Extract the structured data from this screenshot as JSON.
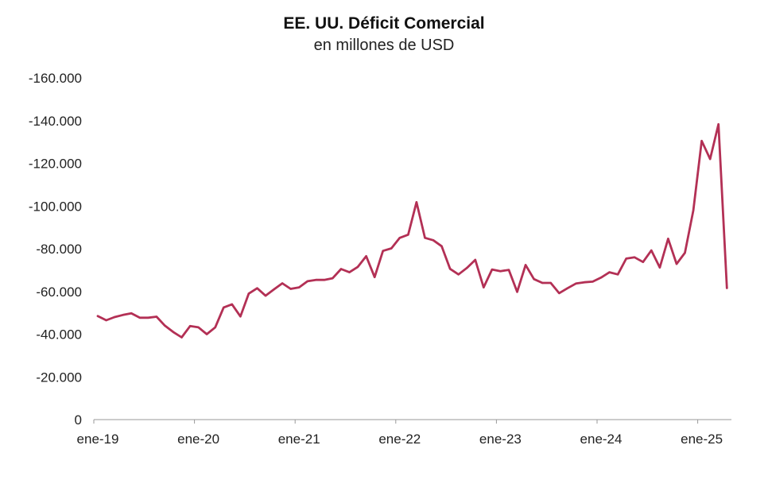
{
  "chart_data": {
    "type": "line",
    "title": "EE. UU. Déficit Comercial",
    "subtitle": "en millones de USD",
    "xlabel": "",
    "ylabel": "",
    "y_tick_labels": [
      "0",
      "-20.000",
      "-40.000",
      "-60.000",
      "-80.000",
      "-100.000",
      "-120.000",
      "-140.000",
      "-160.000"
    ],
    "y_tick_values": [
      0,
      -20000,
      -40000,
      -60000,
      -80000,
      -100000,
      -120000,
      -140000,
      -160000
    ],
    "ylim": [
      0,
      -160000
    ],
    "x_tick_labels": [
      "ene-19",
      "ene-20",
      "ene-21",
      "ene-22",
      "ene-23",
      "ene-24",
      "ene-25"
    ],
    "x_tick_indices": [
      0,
      12,
      24,
      36,
      48,
      60,
      72
    ],
    "grid": false,
    "colors": {
      "line": "#b33055",
      "axis": "#999999"
    },
    "series": [
      {
        "name": "Déficit comercial",
        "start": "ene-19",
        "values": [
          -48500,
          -46500,
          -48000,
          -49000,
          -49800,
          -47700,
          -47700,
          -48200,
          -44000,
          -41000,
          -38500,
          -43800,
          -43200,
          -40000,
          -43200,
          -52500,
          -54000,
          -48300,
          -59000,
          -61500,
          -58000,
          -61000,
          -63800,
          -61200,
          -61900,
          -64800,
          -65400,
          -65400,
          -66200,
          -70500,
          -69000,
          -71500,
          -76500,
          -66700,
          -79000,
          -80200,
          -85100,
          -86600,
          -101800,
          -85100,
          -84000,
          -81200,
          -70600,
          -68000,
          -71000,
          -74800,
          -61900,
          -70300,
          -69500,
          -70100,
          -59800,
          -72400,
          -65800,
          -64000,
          -64000,
          -59200,
          -61500,
          -63700,
          -64300,
          -64600,
          -66500,
          -69000,
          -68000,
          -75400,
          -76000,
          -73800,
          -79200,
          -71200,
          -84700,
          -72900,
          -78100,
          -98000,
          -130500,
          -122000,
          -138300,
          -61600
        ]
      }
    ]
  }
}
